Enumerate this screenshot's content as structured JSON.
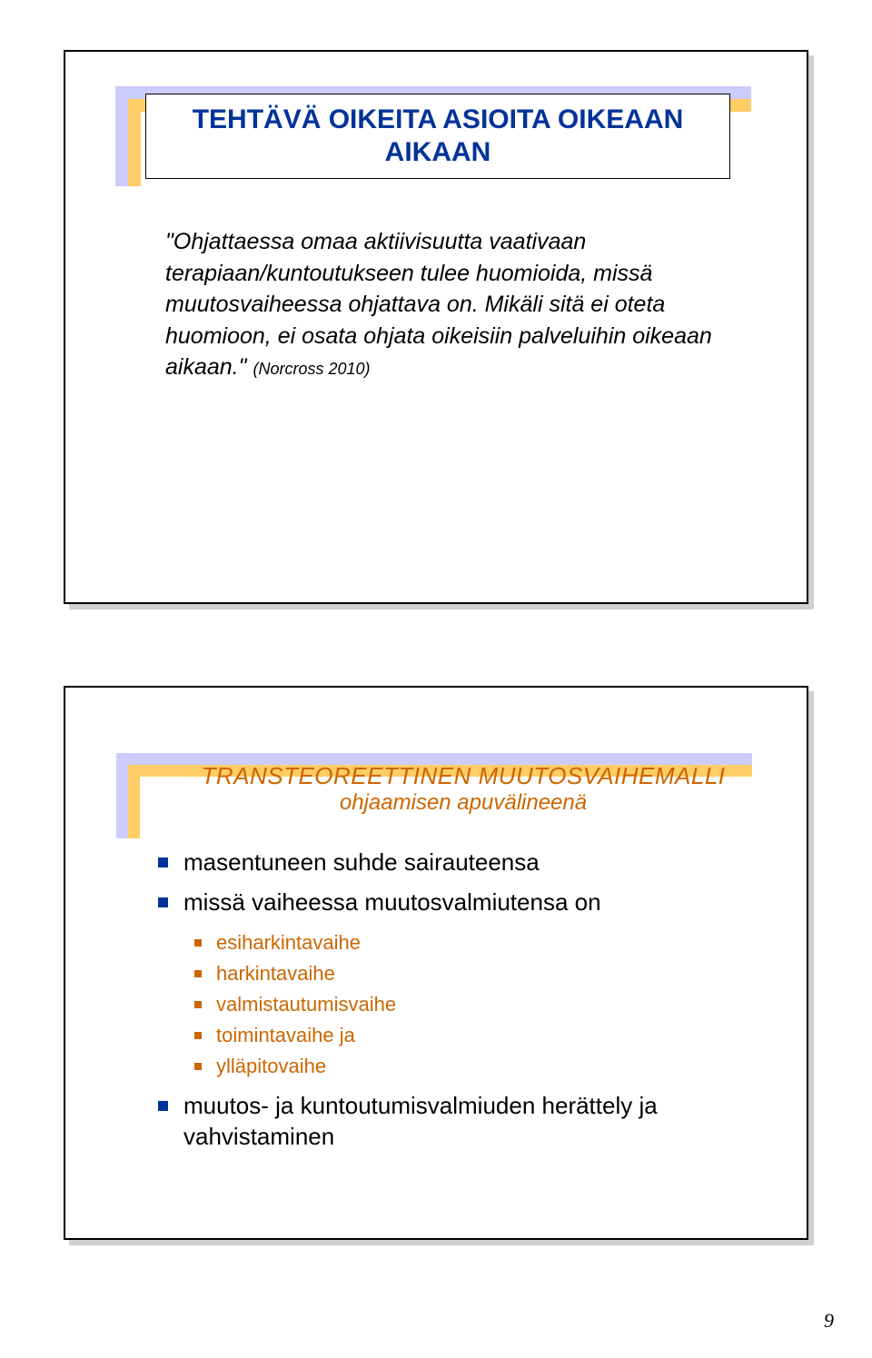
{
  "colors": {
    "title_blue": "#003399",
    "accent_orange": "#cc6600",
    "yellow": "#ffcc66",
    "lilac": "#ccccff",
    "black": "#000000",
    "shadow": "#d0d0d0",
    "white": "#ffffff"
  },
  "page_number": "9",
  "slide1": {
    "title": "TEHTÄVÄ OIKEITA ASIOITA OIKEAAN AIKAAN",
    "body": "\"Ohjattaessa omaa aktiivisuutta vaativaan terapiaan/kuntoutukseen tulee huomioida, missä muutosvaiheessa ohjattava on. Mikäli sitä ei oteta huomioon, ei osata ohjata oikeisiin palveluihin oikeaan aikaan.\"",
    "citation": "(Norcross 2010)",
    "title_fontsize": 30,
    "body_fontsize": 25,
    "citation_fontsize": 18
  },
  "slide2": {
    "title_line1": "TRANSTEOREETTINEN MUUTOSVAIHEMALLI",
    "title_line2": "ohjaamisen apuvälineenä",
    "items": [
      {
        "text": "masentuneen suhde sairauteensa",
        "sub": []
      },
      {
        "text": "missä vaiheessa muutosvalmiutensa on",
        "sub": [
          "esiharkintavaihe",
          "harkintavaihe",
          "valmistautumisvaihe",
          "toimintavaihe ja",
          "ylläpitovaihe"
        ]
      },
      {
        "text": "muutos- ja kuntoutumisvalmiuden herättely ja vahvistaminen",
        "sub": []
      }
    ],
    "title_fontsize": 26,
    "subtitle_fontsize": 24,
    "l1_fontsize": 26,
    "l2_fontsize": 22,
    "l1_bullet_color": "#003399",
    "l2_bullet_color": "#cc6600"
  }
}
